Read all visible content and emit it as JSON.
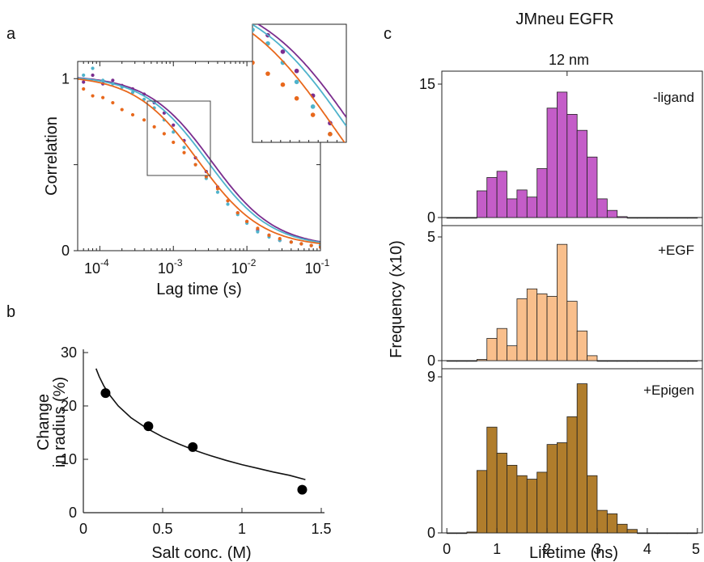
{
  "panel_labels": [
    "a",
    "b",
    "c"
  ],
  "colors": {
    "purple": "#7b2d8e",
    "cyan": "#4fb3cc",
    "orange": "#e8681c",
    "magenta_bar": "#c45dc8",
    "peach_bar": "#f9bf8c",
    "brown_bar": "#b07d2c",
    "axis": "#222222"
  },
  "chart_data": [
    {
      "id": "a",
      "type": "scatter",
      "title": "",
      "xlabel": "Lag time (s)",
      "ylabel": "Correlation",
      "xscale": "log",
      "xlim": [
        5e-05,
        0.1
      ],
      "ylim": [
        0,
        1.1
      ],
      "x_tick_labels": [
        "10",
        "10",
        "10",
        "10"
      ],
      "x_tick_exponents": [
        "-4",
        "-3",
        "-2",
        "-1"
      ],
      "x_ticks": [
        0.0001,
        0.001,
        0.01,
        0.1
      ],
      "y_ticks": [
        0,
        0.5,
        1
      ],
      "y_tick_labels": [
        "0",
        "",
        "1"
      ],
      "inset": "zoom of highlighted region",
      "series": [
        {
          "color": "purple",
          "fit_tau": 0.0033,
          "points_x": [
            6e-05,
            8e-05,
            0.00011,
            0.00015,
            0.0002,
            0.00028,
            0.0004,
            0.00055,
            0.00075,
            0.001,
            0.0014,
            0.002,
            0.0028,
            0.004,
            0.0055,
            0.0075,
            0.01,
            0.014,
            0.02,
            0.028,
            0.04,
            0.055,
            0.075,
            0.1
          ],
          "points_y": [
            0.98,
            1.02,
            0.97,
            0.99,
            0.96,
            0.94,
            0.91,
            0.86,
            0.8,
            0.73,
            0.64,
            0.54,
            0.46,
            0.37,
            0.29,
            0.22,
            0.17,
            0.12,
            0.09,
            0.06,
            0.05,
            0.04,
            0.03,
            0.03
          ]
        },
        {
          "color": "cyan",
          "fit_tau": 0.0029,
          "points_x": [
            6e-05,
            8e-05,
            0.00011,
            0.00015,
            0.0002,
            0.00028,
            0.0004,
            0.00055,
            0.00075,
            0.001,
            0.0014,
            0.002,
            0.0028,
            0.004,
            0.0055,
            0.0075,
            0.01,
            0.014,
            0.02,
            0.028,
            0.04,
            0.055,
            0.075,
            0.1
          ],
          "points_y": [
            1.02,
            1.06,
            0.99,
            0.97,
            0.95,
            0.92,
            0.88,
            0.83,
            0.76,
            0.69,
            0.6,
            0.5,
            0.42,
            0.34,
            0.27,
            0.21,
            0.16,
            0.11,
            0.08,
            0.06,
            0.05,
            0.04,
            0.03,
            0.03
          ]
        },
        {
          "color": "orange",
          "fit_tau": 0.0022,
          "points_x": [
            6e-05,
            8e-05,
            0.00011,
            0.00015,
            0.0002,
            0.00028,
            0.0004,
            0.00055,
            0.00075,
            0.001,
            0.0014,
            0.002,
            0.0028,
            0.004,
            0.0055,
            0.0075,
            0.01,
            0.014,
            0.02,
            0.028,
            0.04,
            0.055,
            0.075,
            0.1
          ],
          "points_y": [
            0.94,
            0.9,
            0.89,
            0.86,
            0.82,
            0.79,
            0.76,
            0.72,
            0.68,
            0.63,
            0.57,
            0.5,
            0.43,
            0.36,
            0.29,
            0.22,
            0.17,
            0.13,
            0.09,
            0.07,
            0.05,
            0.04,
            0.03,
            0.02
          ]
        }
      ]
    },
    {
      "id": "b",
      "type": "scatter",
      "title": "",
      "xlabel": "Salt conc. (M)",
      "ylabel_lines": [
        "Change",
        "in radius (%)"
      ],
      "xlim": [
        0,
        1.5
      ],
      "ylim": [
        0,
        30
      ],
      "x_ticks": [
        0,
        0.5,
        1,
        1.5
      ],
      "x_tick_labels": [
        "0",
        "0.5",
        "1",
        "1.5"
      ],
      "y_ticks": [
        0,
        10,
        20,
        30
      ],
      "y_tick_labels": [
        "0",
        "10",
        "20",
        "30"
      ],
      "points": [
        {
          "x": 0.14,
          "y": 22.4
        },
        {
          "x": 0.41,
          "y": 16.2
        },
        {
          "x": 0.69,
          "y": 12.3
        },
        {
          "x": 1.38,
          "y": 4.3
        }
      ],
      "fit_curve": {
        "x": [
          0.08,
          0.1,
          0.13,
          0.17,
          0.22,
          0.3,
          0.4,
          0.5,
          0.6,
          0.7,
          0.8,
          0.9,
          1.0,
          1.1,
          1.2,
          1.3,
          1.4
        ],
        "y": [
          27.0,
          25.5,
          23.7,
          21.9,
          20.0,
          17.8,
          15.8,
          14.2,
          12.9,
          11.7,
          10.7,
          9.8,
          9.0,
          8.3,
          7.6,
          7.0,
          6.2
        ]
      }
    },
    {
      "id": "c",
      "type": "bar",
      "title": "JMneu EGFR",
      "top_annotation": "12 nm",
      "xlabel": "Lifetime (ns)",
      "ylabel": "Frequency (x10)",
      "xlim": [
        -0.1,
        5.1
      ],
      "x_ticks": [
        0,
        1,
        2,
        3,
        4,
        5
      ],
      "x_tick_labels": [
        "0",
        "1",
        "2",
        "3",
        "4",
        "5"
      ],
      "bin_width": 0.2,
      "bin_starts": [
        0.0,
        0.2,
        0.4,
        0.6,
        0.8,
        1.0,
        1.2,
        1.4,
        1.6,
        1.8,
        2.0,
        2.2,
        2.4,
        2.6,
        2.8,
        3.0,
        3.2,
        3.4,
        3.6,
        3.8,
        4.0,
        4.2,
        4.4,
        4.6,
        4.8
      ],
      "panels": [
        {
          "label": "-ligand",
          "color": "magenta_bar",
          "ymax": 15,
          "y_tick_labels": [
            "0",
            "15"
          ],
          "values": [
            0,
            0,
            0,
            3,
            4.5,
            5.2,
            2.1,
            3.1,
            2.3,
            5.5,
            12.3,
            14.1,
            11.6,
            9.8,
            6.8,
            2.1,
            0.8,
            0.1,
            0,
            0,
            0,
            0,
            0,
            0,
            0
          ]
        },
        {
          "label": "+EGF",
          "color": "peach_bar",
          "ymax": 5,
          "y_tick_labels": [
            "0",
            "5"
          ],
          "values": [
            0,
            0,
            0,
            0.05,
            0.9,
            1.3,
            0.6,
            2.5,
            2.9,
            2.7,
            2.6,
            4.7,
            2.4,
            1.2,
            0.2,
            0,
            0,
            0,
            0,
            0,
            0,
            0,
            0,
            0,
            0
          ]
        },
        {
          "label": "+Epigen",
          "color": "brown_bar",
          "ymax": 9,
          "y_tick_labels": [
            "0",
            "9"
          ],
          "values": [
            0,
            0,
            0.05,
            3.6,
            6.1,
            4.6,
            3.9,
            3.3,
            3.1,
            3.5,
            5.1,
            5.2,
            6.7,
            8.6,
            3.3,
            1.3,
            1.1,
            0.5,
            0.2,
            0,
            0,
            0,
            0,
            0,
            0
          ]
        }
      ]
    }
  ]
}
